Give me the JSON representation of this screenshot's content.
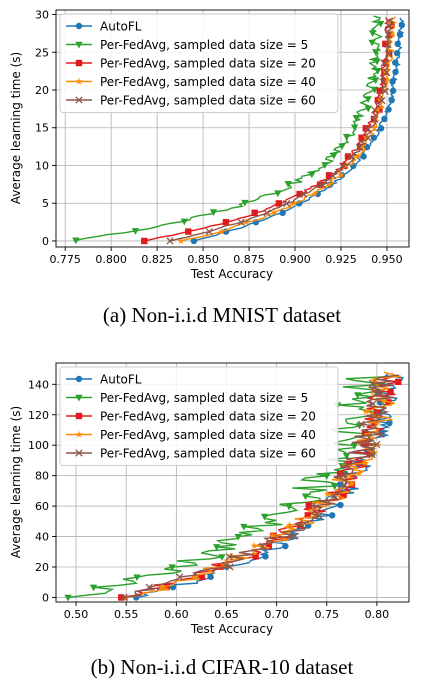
{
  "chart_data": [
    {
      "type": "line",
      "caption": "(a) Non-i.i.d MNIST dataset",
      "xlabel": "Test Accuracy",
      "ylabel": "Average learning time (s)",
      "xlim": [
        0.77,
        0.962
      ],
      "ylim": [
        -0.8,
        30.6
      ],
      "xticks": [
        0.775,
        0.8,
        0.825,
        0.85,
        0.875,
        0.9,
        0.925,
        0.95
      ],
      "xtick_labels": [
        "0.775",
        "0.800",
        "0.825",
        "0.850",
        "0.875",
        "0.900",
        "0.925",
        "0.950"
      ],
      "yticks": [
        0,
        5,
        10,
        15,
        20,
        25,
        30
      ],
      "ytick_labels": [
        "0",
        "5",
        "10",
        "15",
        "20",
        "25",
        "30"
      ],
      "grid": true,
      "legend_position": "top-left",
      "series": [
        {
          "name": "AutoFL",
          "color": "#1f77b4",
          "marker": "circle",
          "t_start": 0,
          "t_end": 29.6,
          "acc_start": 0.845,
          "acc_end": 0.958,
          "k": 4.2,
          "jitter": 0.0012,
          "n": 120,
          "marker_every": 5
        },
        {
          "name": "Per-FedAvg, sampled data size = 5",
          "color": "#2ca02c",
          "marker": "triangle-down",
          "t_start": 0.1,
          "t_end": 29.8,
          "acc_start": 0.778,
          "acc_end": 0.945,
          "k": 5.0,
          "jitter": 0.003,
          "n": 120,
          "marker_every": 5
        },
        {
          "name": "Per-FedAvg, sampled data size = 20",
          "color": "#e31a1c",
          "marker": "square",
          "t_start": 0,
          "t_end": 29.6,
          "acc_start": 0.818,
          "acc_end": 0.951,
          "k": 4.8,
          "jitter": 0.0018,
          "n": 120,
          "marker_every": 5
        },
        {
          "name": "Per-FedAvg, sampled data size = 40",
          "color": "#ff8c00",
          "marker": "star",
          "t_start": 0,
          "t_end": 29.7,
          "acc_start": 0.838,
          "acc_end": 0.953,
          "k": 4.6,
          "jitter": 0.0018,
          "n": 120,
          "marker_every": 5
        },
        {
          "name": "Per-FedAvg, sampled data size = 60",
          "color": "#8c564b",
          "marker": "x",
          "t_start": 0,
          "t_end": 29.5,
          "acc_start": 0.832,
          "acc_end": 0.952,
          "k": 4.5,
          "jitter": 0.0018,
          "n": 120,
          "marker_every": 5
        }
      ]
    },
    {
      "type": "line",
      "caption": "(b) Non-i.i.d CIFAR-10 dataset",
      "xlabel": "Test Accuracy",
      "ylabel": "Average learning time (s)",
      "xlim": [
        0.48,
        0.832
      ],
      "ylim": [
        -3,
        154
      ],
      "xticks": [
        0.5,
        0.55,
        0.6,
        0.65,
        0.7,
        0.75,
        0.8
      ],
      "xtick_labels": [
        "0.50",
        "0.55",
        "0.60",
        "0.65",
        "0.70",
        "0.75",
        "0.80"
      ],
      "yticks": [
        0,
        20,
        40,
        60,
        80,
        100,
        120,
        140
      ],
      "ytick_labels": [
        "0",
        "20",
        "40",
        "60",
        "80",
        "100",
        "120",
        "140"
      ],
      "grid": true,
      "legend_position": "top-left",
      "series": [
        {
          "name": "AutoFL",
          "color": "#1f77b4",
          "marker": "circle",
          "t_start": 0,
          "t_end": 147,
          "acc_start": 0.56,
          "acc_end": 0.815,
          "k": 3.2,
          "jitter": 0.012,
          "n": 110,
          "marker_every": 5
        },
        {
          "name": "Per-FedAvg, sampled data size = 5",
          "color": "#2ca02c",
          "marker": "triangle-down",
          "t_start": 0,
          "t_end": 145,
          "acc_start": 0.492,
          "acc_end": 0.79,
          "k": 3.0,
          "jitter": 0.022,
          "n": 110,
          "marker_every": 5
        },
        {
          "name": "Per-FedAvg, sampled data size = 20",
          "color": "#e31a1c",
          "marker": "square",
          "t_start": 0,
          "t_end": 147,
          "acc_start": 0.545,
          "acc_end": 0.81,
          "k": 3.1,
          "jitter": 0.014,
          "n": 110,
          "marker_every": 5
        },
        {
          "name": "Per-FedAvg, sampled data size = 40",
          "color": "#ff8c00",
          "marker": "star",
          "t_start": 0,
          "t_end": 148,
          "acc_start": 0.55,
          "acc_end": 0.812,
          "k": 3.1,
          "jitter": 0.015,
          "n": 110,
          "marker_every": 5
        },
        {
          "name": "Per-FedAvg, sampled data size = 60",
          "color": "#8c564b",
          "marker": "x",
          "t_start": 0,
          "t_end": 146,
          "acc_start": 0.548,
          "acc_end": 0.808,
          "k": 3.1,
          "jitter": 0.014,
          "n": 110,
          "marker_every": 5
        }
      ]
    }
  ]
}
